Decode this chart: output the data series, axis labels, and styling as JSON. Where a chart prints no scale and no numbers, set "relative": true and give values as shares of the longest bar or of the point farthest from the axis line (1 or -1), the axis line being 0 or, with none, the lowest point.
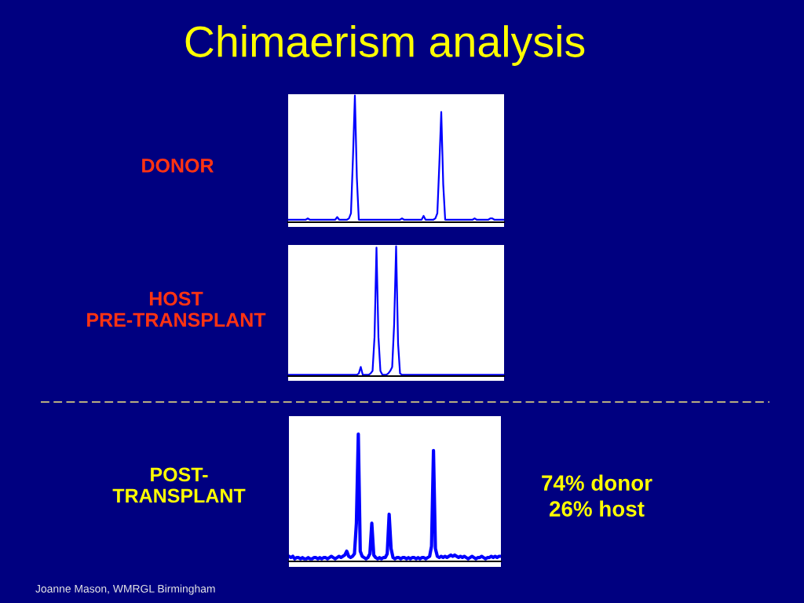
{
  "chart_data": [
    {
      "type": "line",
      "title": "Chimaerism analysis",
      "ylabel": "DONOR",
      "relative": true,
      "categories": [
        null,
        null,
        null,
        null,
        null,
        null,
        null,
        null,
        null,
        null,
        null,
        null,
        null,
        null,
        null,
        null,
        null,
        null,
        null,
        null,
        null,
        null,
        null,
        null,
        null,
        null,
        null,
        null,
        null,
        null,
        null,
        null,
        null,
        null,
        null,
        null,
        null,
        null,
        null,
        null,
        null,
        null,
        null,
        null,
        null,
        null,
        null,
        null,
        null,
        null,
        null,
        null,
        null,
        null,
        null,
        null,
        null,
        null,
        null,
        null,
        null,
        null,
        null,
        null,
        null,
        null,
        null,
        null,
        null,
        null,
        null,
        null,
        null,
        null,
        null,
        null,
        null,
        null,
        null,
        null,
        null,
        null,
        null,
        null,
        null,
        null,
        null,
        null,
        null,
        null,
        null,
        null,
        null,
        null,
        null,
        null,
        null,
        null,
        null,
        null,
        null,
        null,
        null,
        null,
        null,
        null,
        null,
        null,
        null,
        null,
        null
      ],
      "series": [
        {
          "color": "#0000ff",
          "values": [
            0.02,
            0.02,
            0.02,
            0.02,
            0.02,
            0.02,
            0.02,
            0.02,
            0.02,
            0.02,
            0.03,
            0.02,
            0.02,
            0.02,
            0.02,
            0.02,
            0.02,
            0.02,
            0.02,
            0.02,
            0.02,
            0.02,
            0.02,
            0.02,
            0.02,
            0.04,
            0.02,
            0.02,
            0.02,
            0.02,
            0.02,
            0.03,
            0.07,
            0.5,
            1.0,
            0.35,
            0.02,
            0.02,
            0.02,
            0.02,
            0.02,
            0.02,
            0.02,
            0.02,
            0.02,
            0.02,
            0.02,
            0.02,
            0.02,
            0.02,
            0.02,
            0.02,
            0.02,
            0.02,
            0.02,
            0.02,
            0.02,
            0.02,
            0.03,
            0.02,
            0.02,
            0.02,
            0.02,
            0.02,
            0.02,
            0.02,
            0.02,
            0.02,
            0.02,
            0.05,
            0.02,
            0.02,
            0.02,
            0.02,
            0.02,
            0.03,
            0.07,
            0.45,
            0.87,
            0.3,
            0.02,
            0.02,
            0.02,
            0.02,
            0.02,
            0.02,
            0.02,
            0.02,
            0.02,
            0.02,
            0.02,
            0.02,
            0.02,
            0.02,
            0.02,
            0.03,
            0.02,
            0.02,
            0.02,
            0.02,
            0.02,
            0.02,
            0.02,
            0.03,
            0.03,
            0.02,
            0.02,
            0.02,
            0.02,
            0.02,
            0.02
          ]
        }
      ]
    },
    {
      "type": "line",
      "ylabel": "HOST\nPRE-TRANSPLANT",
      "relative": true,
      "categories": [
        null,
        null,
        null,
        null,
        null,
        null,
        null,
        null,
        null,
        null,
        null,
        null,
        null,
        null,
        null,
        null,
        null,
        null,
        null,
        null,
        null,
        null,
        null,
        null,
        null,
        null,
        null,
        null,
        null,
        null,
        null,
        null,
        null,
        null,
        null,
        null,
        null,
        null,
        null,
        null,
        null,
        null,
        null,
        null,
        null,
        null,
        null,
        null,
        null,
        null,
        null,
        null,
        null,
        null,
        null,
        null,
        null,
        null,
        null,
        null,
        null,
        null,
        null,
        null,
        null,
        null,
        null,
        null,
        null,
        null,
        null,
        null,
        null,
        null,
        null,
        null,
        null,
        null,
        null,
        null,
        null,
        null,
        null,
        null,
        null,
        null,
        null,
        null,
        null,
        null,
        null,
        null,
        null,
        null,
        null,
        null,
        null,
        null,
        null,
        null,
        null,
        null,
        null,
        null,
        null,
        null,
        null,
        null,
        null,
        null,
        null
      ],
      "series": [
        {
          "color": "#0000ff",
          "values": [
            0.01,
            0.01,
            0.01,
            0.01,
            0.01,
            0.01,
            0.01,
            0.01,
            0.01,
            0.01,
            0.01,
            0.01,
            0.01,
            0.01,
            0.01,
            0.01,
            0.01,
            0.01,
            0.01,
            0.01,
            0.01,
            0.01,
            0.01,
            0.01,
            0.01,
            0.01,
            0.01,
            0.01,
            0.01,
            0.01,
            0.01,
            0.01,
            0.01,
            0.01,
            0.01,
            0.01,
            0.02,
            0.07,
            0.01,
            0.01,
            0.01,
            0.01,
            0.02,
            0.04,
            0.3,
            0.99,
            0.3,
            0.04,
            0.01,
            0.01,
            0.01,
            0.02,
            0.04,
            0.07,
            0.4,
            1.0,
            0.25,
            0.02,
            0.01,
            0.01,
            0.01,
            0.01,
            0.01,
            0.01,
            0.01,
            0.01,
            0.01,
            0.01,
            0.01,
            0.01,
            0.01,
            0.01,
            0.01,
            0.01,
            0.01,
            0.01,
            0.01,
            0.01,
            0.01,
            0.01,
            0.01,
            0.01,
            0.01,
            0.01,
            0.01,
            0.01,
            0.01,
            0.01,
            0.01,
            0.01,
            0.01,
            0.01,
            0.01,
            0.01,
            0.01,
            0.01,
            0.01,
            0.01,
            0.01,
            0.01,
            0.01,
            0.01,
            0.01,
            0.01,
            0.01,
            0.01,
            0.01,
            0.01,
            0.01,
            0.01,
            0.01
          ]
        }
      ]
    },
    {
      "type": "line",
      "ylabel": "POST-\nTRANSPLANT",
      "relative": true,
      "annotations": [
        "74% donor\n26% host",
        "Joanne Mason, WMRGL Birmingham"
      ],
      "categories": [
        null,
        null,
        null,
        null,
        null,
        null,
        null,
        null,
        null,
        null,
        null,
        null,
        null,
        null,
        null,
        null,
        null,
        null,
        null,
        null,
        null,
        null,
        null,
        null,
        null,
        null,
        null,
        null,
        null,
        null,
        null,
        null,
        null,
        null,
        null,
        null,
        null,
        null,
        null,
        null,
        null,
        null,
        null,
        null,
        null,
        null,
        null,
        null,
        null,
        null,
        null,
        null,
        null,
        null,
        null,
        null,
        null,
        null,
        null,
        null,
        null,
        null,
        null,
        null,
        null,
        null,
        null,
        null,
        null,
        null,
        null,
        null,
        null,
        null,
        null,
        null,
        null,
        null,
        null,
        null,
        null,
        null,
        null,
        null,
        null,
        null,
        null,
        null,
        null,
        null,
        null,
        null,
        null,
        null,
        null,
        null,
        null,
        null,
        null,
        null,
        null,
        null,
        null,
        null,
        null,
        null,
        null,
        null,
        null,
        null,
        null
      ],
      "series": [
        {
          "color": "#0000ff",
          "values": [
            0.04,
            0.03,
            0.04,
            0.02,
            0.03,
            0.03,
            0.02,
            0.03,
            0.02,
            0.02,
            0.03,
            0.02,
            0.02,
            0.03,
            0.03,
            0.02,
            0.03,
            0.02,
            0.03,
            0.03,
            0.02,
            0.03,
            0.04,
            0.03,
            0.02,
            0.03,
            0.04,
            0.03,
            0.04,
            0.05,
            0.08,
            0.04,
            0.03,
            0.04,
            0.06,
            0.3,
            1.0,
            0.08,
            0.04,
            0.03,
            0.02,
            0.03,
            0.06,
            0.3,
            0.05,
            0.03,
            0.02,
            0.03,
            0.02,
            0.03,
            0.03,
            0.06,
            0.37,
            0.1,
            0.03,
            0.02,
            0.03,
            0.03,
            0.02,
            0.03,
            0.03,
            0.02,
            0.03,
            0.02,
            0.03,
            0.03,
            0.02,
            0.03,
            0.02,
            0.03,
            0.03,
            0.02,
            0.03,
            0.04,
            0.12,
            0.87,
            0.1,
            0.04,
            0.03,
            0.04,
            0.03,
            0.04,
            0.03,
            0.04,
            0.05,
            0.04,
            0.05,
            0.04,
            0.03,
            0.04,
            0.03,
            0.04,
            0.03,
            0.02,
            0.03,
            0.04,
            0.03,
            0.02,
            0.03,
            0.03,
            0.04,
            0.03,
            0.02,
            0.03,
            0.03,
            0.04,
            0.03,
            0.04,
            0.03,
            0.04,
            0.04
          ]
        }
      ]
    }
  ]
}
